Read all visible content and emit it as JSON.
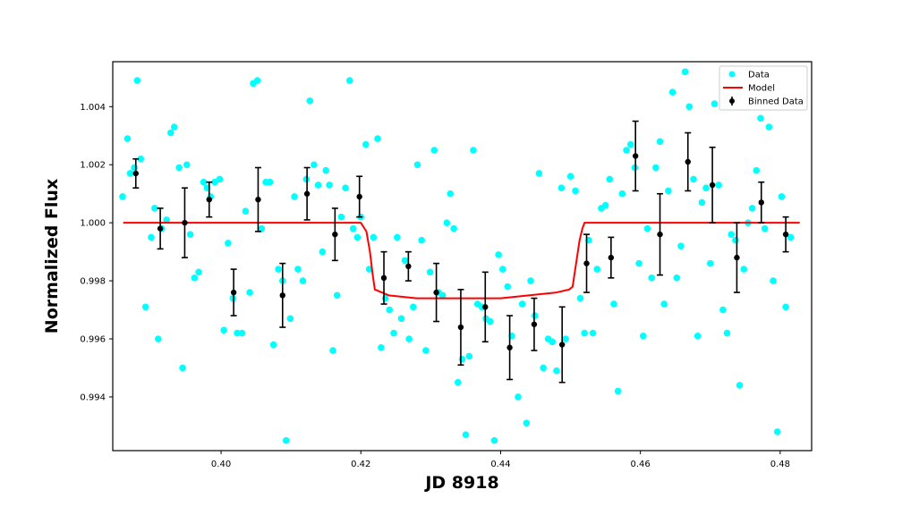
{
  "chart_data": {
    "type": "scatter",
    "xlabel": "JD 8918",
    "ylabel": "Normalized Flux",
    "xlim": [
      0.3845,
      0.4845
    ],
    "ylim": [
      0.99215,
      1.00555
    ],
    "xticks": [
      0.4,
      0.42,
      0.44,
      0.46,
      0.48
    ],
    "yticks": [
      0.994,
      0.996,
      0.998,
      1.0,
      1.002,
      1.004
    ],
    "legend_position": "top-right",
    "series": [
      {
        "name": "Data",
        "kind": "scatter",
        "color": "#00ffff",
        "points": [
          [
            0.3859,
            1.0009
          ],
          [
            0.3866,
            1.0029
          ],
          [
            0.387,
            1.0017
          ],
          [
            0.3876,
            1.0019
          ],
          [
            0.388,
            1.0049
          ],
          [
            0.3885,
            1.0022
          ],
          [
            0.3892,
            0.9971
          ],
          [
            0.39,
            0.9995
          ],
          [
            0.3905,
            1.0005
          ],
          [
            0.391,
            0.996
          ],
          [
            0.3915,
            0.9998
          ],
          [
            0.3922,
            1.0001
          ],
          [
            0.3928,
            1.0031
          ],
          [
            0.3933,
            1.0033
          ],
          [
            0.394,
            1.0019
          ],
          [
            0.3945,
            0.995
          ],
          [
            0.3951,
            1.002
          ],
          [
            0.3956,
            0.9996
          ],
          [
            0.3962,
            0.9981
          ],
          [
            0.3968,
            0.9983
          ],
          [
            0.3975,
            1.0014
          ],
          [
            0.398,
            1.0012
          ],
          [
            0.3985,
            1.0009
          ],
          [
            0.3991,
            1.0014
          ],
          [
            0.3998,
            1.0015
          ],
          [
            0.4004,
            0.9963
          ],
          [
            0.401,
            0.9993
          ],
          [
            0.4017,
            0.9974
          ],
          [
            0.4023,
            0.9962
          ],
          [
            0.403,
            0.9962
          ],
          [
            0.4035,
            1.0004
          ],
          [
            0.4041,
            0.9976
          ],
          [
            0.4046,
            1.0048
          ],
          [
            0.4052,
            1.0049
          ],
          [
            0.4058,
            0.9998
          ],
          [
            0.4064,
            1.0014
          ],
          [
            0.407,
            1.0014
          ],
          [
            0.4075,
            0.9958
          ],
          [
            0.4082,
            0.9984
          ],
          [
            0.4088,
            0.998
          ],
          [
            0.4093,
            0.9925
          ],
          [
            0.4099,
            0.9967
          ],
          [
            0.4105,
            1.0009
          ],
          [
            0.411,
            0.9984
          ],
          [
            0.4117,
            0.998
          ],
          [
            0.4122,
            1.0015
          ],
          [
            0.4127,
            1.0042
          ],
          [
            0.4133,
            1.002
          ],
          [
            0.4139,
            1.0013
          ],
          [
            0.4145,
            0.999
          ],
          [
            0.415,
            1.0018
          ],
          [
            0.4155,
            1.0013
          ],
          [
            0.416,
            0.9956
          ],
          [
            0.4166,
            0.9975
          ],
          [
            0.4172,
            1.0002
          ],
          [
            0.4178,
            1.0012
          ],
          [
            0.4184,
            1.0049
          ],
          [
            0.4189,
            0.9998
          ],
          [
            0.4195,
            0.9995
          ],
          [
            0.42,
            1.0002
          ],
          [
            0.4207,
            1.0027
          ],
          [
            0.4212,
            0.9984
          ],
          [
            0.4218,
            0.9995
          ],
          [
            0.4224,
            1.0029
          ],
          [
            0.4229,
            0.9957
          ],
          [
            0.4235,
            0.9974
          ],
          [
            0.4241,
            0.997
          ],
          [
            0.4247,
            0.9962
          ],
          [
            0.4252,
            0.9995
          ],
          [
            0.4258,
            0.9967
          ],
          [
            0.4263,
            0.9987
          ],
          [
            0.4269,
            0.996
          ],
          [
            0.4275,
            0.9971
          ],
          [
            0.4281,
            1.002
          ],
          [
            0.4287,
            0.9994
          ],
          [
            0.4293,
            0.9956
          ],
          [
            0.4299,
            0.9983
          ],
          [
            0.4305,
            1.0025
          ],
          [
            0.4311,
            0.9976
          ],
          [
            0.4317,
            0.9975
          ],
          [
            0.4323,
            1.0
          ],
          [
            0.4328,
            1.001
          ],
          [
            0.4333,
            0.9998
          ],
          [
            0.4339,
            0.9945
          ],
          [
            0.4345,
            0.9953
          ],
          [
            0.435,
            0.9927
          ],
          [
            0.4355,
            0.9954
          ],
          [
            0.4361,
            1.0025
          ],
          [
            0.4367,
            0.9972
          ],
          [
            0.4373,
            0.9971
          ],
          [
            0.4379,
            0.9967
          ],
          [
            0.4385,
            0.9966
          ],
          [
            0.4391,
            0.9925
          ],
          [
            0.4397,
            0.9989
          ],
          [
            0.4403,
            0.9984
          ],
          [
            0.441,
            0.9978
          ],
          [
            0.4416,
            0.9961
          ],
          [
            0.4425,
            0.994
          ],
          [
            0.4431,
            0.9972
          ],
          [
            0.4437,
            0.9931
          ],
          [
            0.4443,
            0.998
          ],
          [
            0.4449,
            0.9968
          ],
          [
            0.4455,
            1.0017
          ],
          [
            0.4461,
            0.995
          ],
          [
            0.4468,
            0.996
          ],
          [
            0.4474,
            0.9959
          ],
          [
            0.448,
            0.9949
          ],
          [
            0.4487,
            1.0012
          ],
          [
            0.4493,
            0.996
          ],
          [
            0.45,
            1.0016
          ],
          [
            0.4507,
            1.0011
          ],
          [
            0.4514,
            0.9974
          ],
          [
            0.452,
            0.9962
          ],
          [
            0.4526,
            0.9994
          ],
          [
            0.4532,
            0.9962
          ],
          [
            0.4538,
            0.9984
          ],
          [
            0.4544,
            1.0005
          ],
          [
            0.455,
            1.0006
          ],
          [
            0.4556,
            1.0015
          ],
          [
            0.4562,
            0.9972
          ],
          [
            0.4568,
            0.9942
          ],
          [
            0.4574,
            1.001
          ],
          [
            0.458,
            1.0025
          ],
          [
            0.4586,
            1.0027
          ],
          [
            0.4592,
            1.0019
          ],
          [
            0.4598,
            0.9986
          ],
          [
            0.4604,
            0.9961
          ],
          [
            0.461,
            0.9998
          ],
          [
            0.4616,
            0.9981
          ],
          [
            0.4622,
            1.0019
          ],
          [
            0.4628,
            1.0028
          ],
          [
            0.4634,
            0.9972
          ],
          [
            0.464,
            1.0011
          ],
          [
            0.4646,
            1.0045
          ],
          [
            0.4652,
            0.9981
          ],
          [
            0.4658,
            0.9992
          ],
          [
            0.4664,
            1.0052
          ],
          [
            0.467,
            1.004
          ],
          [
            0.4676,
            1.0015
          ],
          [
            0.4682,
            0.9961
          ],
          [
            0.4688,
            1.0007
          ],
          [
            0.4694,
            1.0012
          ],
          [
            0.47,
            0.9986
          ],
          [
            0.4706,
            1.0041
          ],
          [
            0.4712,
            1.0013
          ],
          [
            0.4718,
            0.997
          ],
          [
            0.4724,
            0.9962
          ],
          [
            0.473,
            0.9996
          ],
          [
            0.4736,
            0.9994
          ],
          [
            0.4742,
            0.9944
          ],
          [
            0.4748,
            0.9984
          ],
          [
            0.4754,
            1.0
          ],
          [
            0.476,
            1.0005
          ],
          [
            0.4766,
            1.0018
          ],
          [
            0.4772,
            1.0036
          ],
          [
            0.4778,
            0.9998
          ],
          [
            0.4784,
            1.0033
          ],
          [
            0.479,
            0.998
          ],
          [
            0.4796,
            0.9928
          ],
          [
            0.4802,
            1.0009
          ],
          [
            0.4808,
            0.9971
          ],
          [
            0.4815,
            0.9995
          ]
        ]
      },
      {
        "name": "Model",
        "kind": "line",
        "color": "#ff0000",
        "points": [
          [
            0.386,
            1.0
          ],
          [
            0.42,
            1.0
          ],
          [
            0.4208,
            0.9997
          ],
          [
            0.4213,
            0.999
          ],
          [
            0.4217,
            0.9982
          ],
          [
            0.422,
            0.9977
          ],
          [
            0.424,
            0.9975
          ],
          [
            0.428,
            0.9974
          ],
          [
            0.432,
            0.9974
          ],
          [
            0.436,
            0.9974
          ],
          [
            0.44,
            0.9974
          ],
          [
            0.444,
            0.9975
          ],
          [
            0.448,
            0.9976
          ],
          [
            0.4498,
            0.9977
          ],
          [
            0.4503,
            0.9978
          ],
          [
            0.4508,
            0.9986
          ],
          [
            0.4513,
            0.9994
          ],
          [
            0.4517,
            0.9998
          ],
          [
            0.452,
            1.0
          ],
          [
            0.4828,
            1.0
          ]
        ]
      },
      {
        "name": "Binned Data",
        "kind": "errorbar",
        "color": "#000000",
        "points": [
          [
            0.3878,
            1.0017,
            0.0005
          ],
          [
            0.3913,
            0.9998,
            0.0007
          ],
          [
            0.3948,
            1.0,
            0.0012
          ],
          [
            0.3983,
            1.0008,
            0.0006
          ],
          [
            0.4018,
            0.9976,
            0.0008
          ],
          [
            0.4053,
            1.0008,
            0.0011
          ],
          [
            0.4088,
            0.9975,
            0.0011
          ],
          [
            0.4123,
            1.001,
            0.0009
          ],
          [
            0.4163,
            0.9996,
            0.0009
          ],
          [
            0.4198,
            1.0009,
            0.0007
          ],
          [
            0.4233,
            0.9981,
            0.0009
          ],
          [
            0.4268,
            0.9985,
            0.0005
          ],
          [
            0.4308,
            0.9976,
            0.001
          ],
          [
            0.4343,
            0.9964,
            0.0013
          ],
          [
            0.4378,
            0.9971,
            0.0012
          ],
          [
            0.4413,
            0.9957,
            0.0011
          ],
          [
            0.4448,
            0.9965,
            0.0009
          ],
          [
            0.4488,
            0.9958,
            0.0013
          ],
          [
            0.4523,
            0.9986,
            0.001
          ],
          [
            0.4558,
            0.9988,
            0.0007
          ],
          [
            0.4593,
            1.0023,
            0.0012
          ],
          [
            0.4628,
            0.9996,
            0.0014
          ],
          [
            0.4668,
            1.0021,
            0.001
          ],
          [
            0.4703,
            1.0013,
            0.0013
          ],
          [
            0.4738,
            0.9988,
            0.0012
          ],
          [
            0.4773,
            1.0007,
            0.0007
          ],
          [
            0.4808,
            0.9996,
            0.0006
          ]
        ]
      }
    ]
  }
}
